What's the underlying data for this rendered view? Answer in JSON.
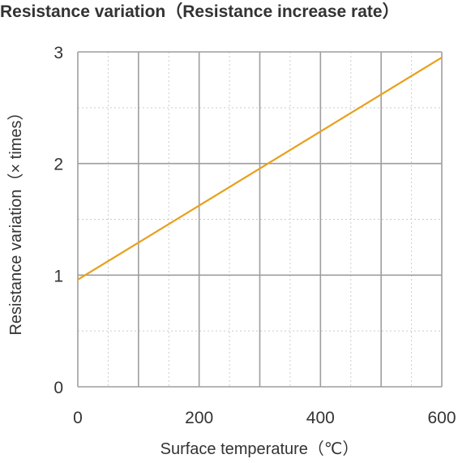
{
  "chart_data": {
    "type": "line",
    "title": "Resistance variation（Resistance increase rate）",
    "xlabel": "Surface temperature（℃）",
    "ylabel": "Resistance variation（× times）",
    "xlim": [
      0,
      600
    ],
    "ylim": [
      0,
      3
    ],
    "x_ticks": [
      0,
      200,
      400,
      600
    ],
    "y_ticks": [
      0,
      1,
      2,
      3
    ],
    "x_major_grid": [
      0,
      100,
      200,
      300,
      400,
      500,
      600
    ],
    "x_minor_grid": [
      50,
      150,
      250,
      350,
      450,
      550
    ],
    "y_major_grid": [
      0,
      1,
      2,
      3
    ],
    "y_minor_grid": [
      0.5,
      1.5,
      2.5
    ],
    "grid": true,
    "legend": "none",
    "colors": {
      "line": "#e8a01e",
      "major_grid": "#9e9e9e",
      "minor_grid": "#cccccc",
      "text": "#333333"
    },
    "series": [
      {
        "x": [
          0,
          600
        ],
        "y": [
          0.96,
          2.95
        ]
      }
    ]
  }
}
